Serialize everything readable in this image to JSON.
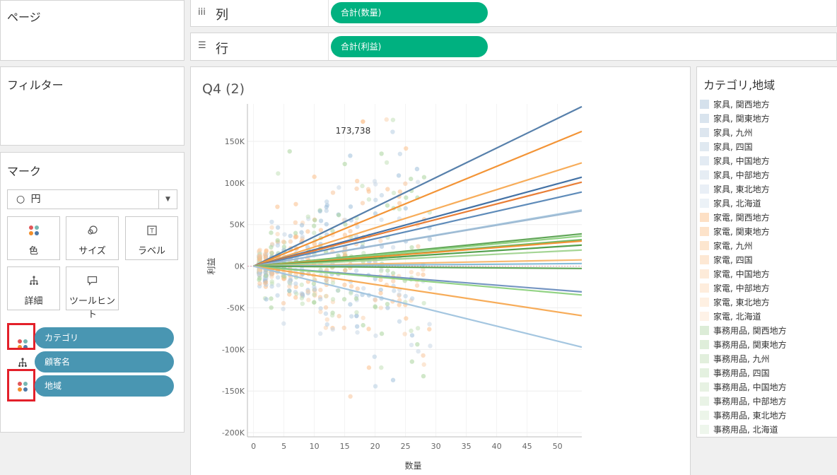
{
  "pages_panel": {
    "title": "ページ"
  },
  "filters_panel": {
    "title": "フィルター"
  },
  "marks_panel": {
    "title": "マーク",
    "mark_type": {
      "glyph": "○",
      "value": "円"
    },
    "buttons": [
      {
        "label": "色",
        "icon": "color-icon"
      },
      {
        "label": "サイズ",
        "icon": "size-icon"
      },
      {
        "label": "ラベル",
        "icon": "label-icon"
      },
      {
        "label": "詳細",
        "icon": "detail-icon"
      },
      {
        "label": "ツールヒント",
        "icon": "tooltip-icon"
      }
    ],
    "fields": [
      {
        "label": "カテゴリ",
        "icon": "color-icon"
      },
      {
        "label": "顧客名",
        "icon": "detail-icon"
      },
      {
        "label": "地域",
        "icon": "color-icon"
      }
    ]
  },
  "columns_shelf": {
    "icon": "iii",
    "label": "列",
    "pill": "合計(数量)"
  },
  "rows_shelf": {
    "icon": "☰",
    "label": "行",
    "pill": "合計(利益)"
  },
  "worksheet": {
    "title": "Q4 (2)",
    "annotation": "173,738"
  },
  "chart_data": {
    "type": "scatter",
    "xlabel": "数量",
    "ylabel": "利益",
    "xlim": [
      -1,
      54
    ],
    "ylim": [
      -205000,
      195000
    ],
    "x_ticks": [
      "0",
      "5",
      "10",
      "15",
      "20",
      "25",
      "30",
      "35",
      "40",
      "45",
      "50"
    ],
    "y_ticks": [
      "150K",
      "100K",
      "50K",
      "0K",
      "-50K",
      "-100K",
      "-150K",
      "-200K"
    ],
    "y_tick_values": [
      150000,
      100000,
      50000,
      0,
      -50000,
      -100000,
      -150000,
      -200000
    ],
    "trend_lines": [
      {
        "color": "#4e79a7",
        "slope": 3550
      },
      {
        "color": "#f28e2b",
        "slope": 3000
      },
      {
        "color": "#f7a850",
        "slope": 2300
      },
      {
        "color": "#3a6aa0",
        "slope": 1980
      },
      {
        "color": "#e8772b",
        "slope": 1870
      },
      {
        "color": "#5585b5",
        "slope": 1650
      },
      {
        "color": "#a6c8e0",
        "slope": 1250
      },
      {
        "color": "#9cb8d2",
        "slope": 1230
      },
      {
        "color": "#59a14f",
        "slope": 720
      },
      {
        "color": "#8cd17d",
        "slope": 670
      },
      {
        "color": "#6bb35e",
        "slope": 590
      },
      {
        "color": "#f28e2b",
        "slope": 560
      },
      {
        "color": "#4a9b45",
        "slope": 470
      },
      {
        "color": "#a0d38f",
        "slope": 360
      },
      {
        "color": "#f7b56a",
        "slope": 140
      },
      {
        "color": "#7fb8d6",
        "slope": 60
      },
      {
        "color": "#59a14f",
        "slope": -50
      },
      {
        "color": "#6e8fbf",
        "slope": -570
      },
      {
        "color": "#8cd17d",
        "slope": -640
      },
      {
        "color": "#f7a850",
        "slope": -1100
      },
      {
        "color": "#9fc3de",
        "slope": -1800
      }
    ],
    "highlight_point": {
      "x": 18,
      "y": 173738
    }
  },
  "legend": {
    "title": "カテゴリ,地域",
    "items": [
      {
        "label": "家具, 関西地方",
        "color": "#d5e1ec"
      },
      {
        "label": "家具, 関東地方",
        "color": "#d9e4ee"
      },
      {
        "label": "家具, 九州",
        "color": "#dde6ef"
      },
      {
        "label": "家具, 四国",
        "color": "#e0e9f1"
      },
      {
        "label": "家具, 中国地方",
        "color": "#e3ebf3"
      },
      {
        "label": "家具, 中部地方",
        "color": "#e6edf4"
      },
      {
        "label": "家具, 東北地方",
        "color": "#e9eff6"
      },
      {
        "label": "家具, 北海道",
        "color": "#ecf2f7"
      },
      {
        "label": "家電, 関西地方",
        "color": "#fde0c5"
      },
      {
        "label": "家電, 関東地方",
        "color": "#fde3ca"
      },
      {
        "label": "家電, 九州",
        "color": "#fde6cf"
      },
      {
        "label": "家電, 四国",
        "color": "#fde8d4"
      },
      {
        "label": "家電, 中国地方",
        "color": "#fdebd9"
      },
      {
        "label": "家電, 中部地方",
        "color": "#feeddd"
      },
      {
        "label": "家電, 東北地方",
        "color": "#fef0e2"
      },
      {
        "label": "家電, 北海道",
        "color": "#fef2e7"
      },
      {
        "label": "事務用品, 関西地方",
        "color": "#dcecd7"
      },
      {
        "label": "事務用品, 関東地方",
        "color": "#dfeeda"
      },
      {
        "label": "事務用品, 九州",
        "color": "#e2efdd"
      },
      {
        "label": "事務用品, 四国",
        "color": "#e4f1e0"
      },
      {
        "label": "事務用品, 中国地方",
        "color": "#e7f2e3"
      },
      {
        "label": "事務用品, 中部地方",
        "color": "#e9f3e6"
      },
      {
        "label": "事務用品, 東北地方",
        "color": "#ecf5e9"
      },
      {
        "label": "事務用品, 北海道",
        "color": "#eef6ec"
      }
    ]
  }
}
